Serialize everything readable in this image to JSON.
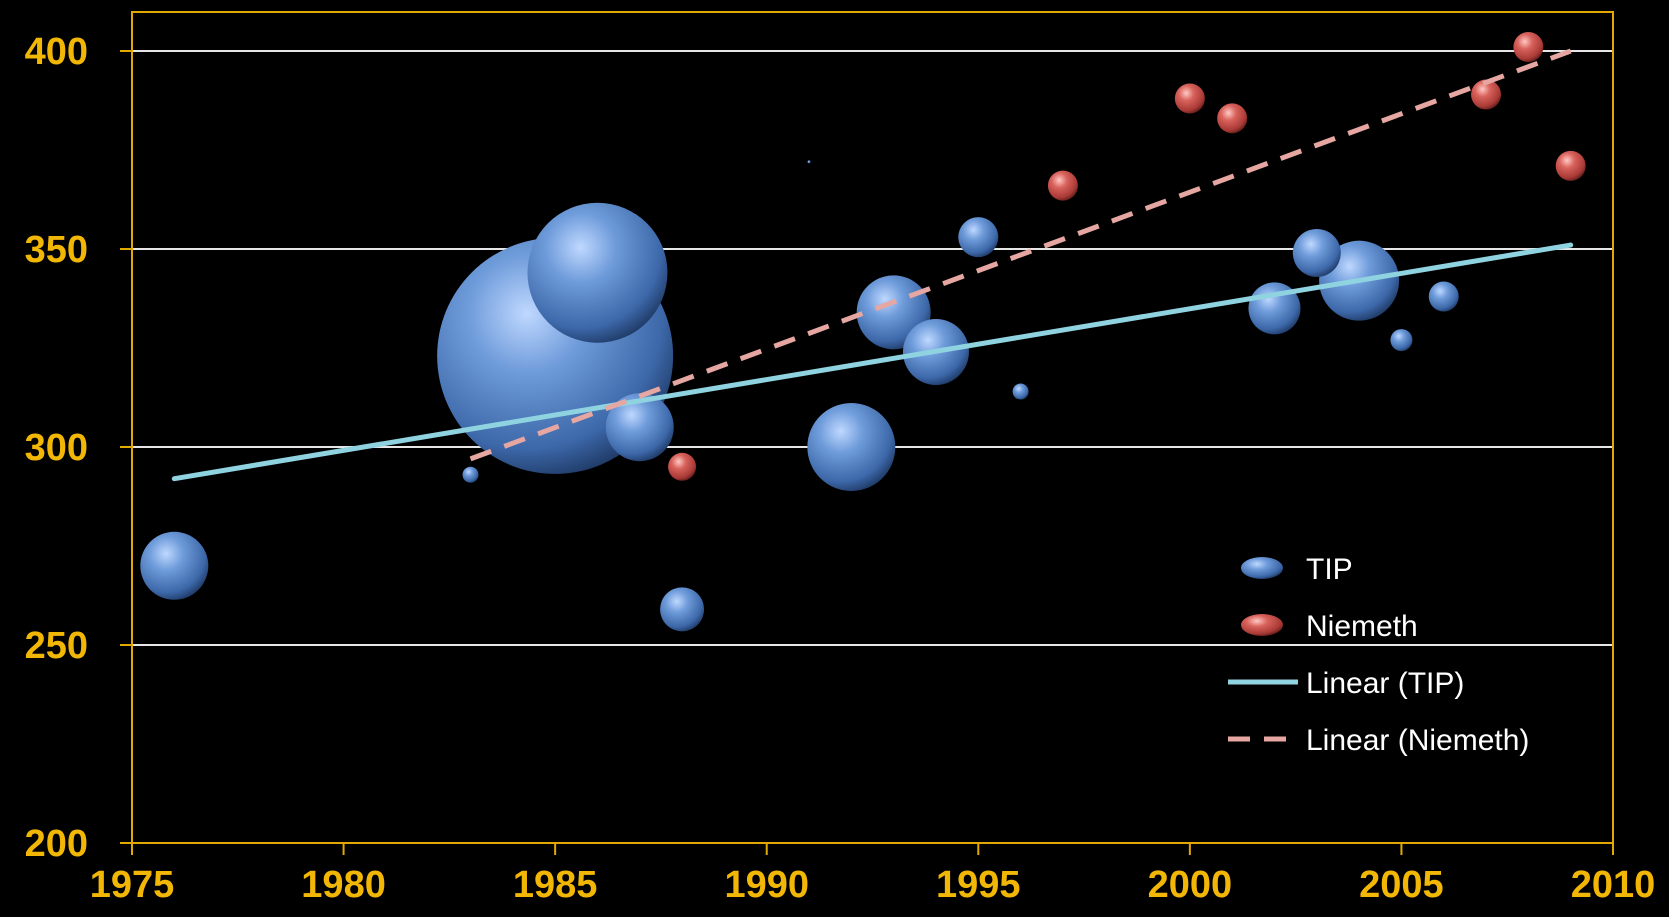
{
  "chart_data": {
    "type": "bubble",
    "title": "",
    "xlabel": "",
    "ylabel": "",
    "xlim": [
      1975,
      2010
    ],
    "ylim": [
      200,
      420
    ],
    "x_ticks": [
      "1975",
      "1980",
      "1985",
      "1990",
      "1995",
      "2000",
      "2005",
      "2010"
    ],
    "y_ticks": [
      "200",
      "250",
      "300",
      "350",
      "400"
    ],
    "grid": "horizontal",
    "legend_position": "bottom-right",
    "series": [
      {
        "name": "TIP",
        "color": "#4A7BC4",
        "points": [
          {
            "x": 1976,
            "y": 270,
            "size": 34
          },
          {
            "x": 1983,
            "y": 293,
            "size": 8
          },
          {
            "x": 1985,
            "y": 323,
            "size": 118
          },
          {
            "x": 1986,
            "y": 344,
            "size": 70
          },
          {
            "x": 1987,
            "y": 305,
            "size": 34
          },
          {
            "x": 1988,
            "y": 259,
            "size": 22
          },
          {
            "x": 1991,
            "y": 372,
            "size": 1.5
          },
          {
            "x": 1992,
            "y": 300,
            "size": 44
          },
          {
            "x": 1993,
            "y": 334,
            "size": 37
          },
          {
            "x": 1994,
            "y": 324,
            "size": 33
          },
          {
            "x": 1995,
            "y": 353,
            "size": 20
          },
          {
            "x": 1996,
            "y": 314,
            "size": 8
          },
          {
            "x": 2002,
            "y": 335,
            "size": 26
          },
          {
            "x": 2003,
            "y": 349,
            "size": 24
          },
          {
            "x": 2004,
            "y": 342,
            "size": 40
          },
          {
            "x": 2005,
            "y": 327,
            "size": 11
          },
          {
            "x": 2006,
            "y": 338,
            "size": 15
          }
        ]
      },
      {
        "name": "Niemeth",
        "color": "#C0504D",
        "points": [
          {
            "x": 1988,
            "y": 295,
            "size": 14
          },
          {
            "x": 1997,
            "y": 366,
            "size": 15
          },
          {
            "x": 2000,
            "y": 388,
            "size": 15
          },
          {
            "x": 2001,
            "y": 383,
            "size": 15
          },
          {
            "x": 2007,
            "y": 389,
            "size": 15
          },
          {
            "x": 2008,
            "y": 401,
            "size": 15
          },
          {
            "x": 2009,
            "y": 371,
            "size": 15
          }
        ]
      }
    ],
    "trendlines": [
      {
        "name": "Linear (TIP)",
        "style": "solid",
        "color": "#8FD3E0",
        "x": [
          1976,
          2009
        ],
        "y": [
          292,
          351
        ]
      },
      {
        "name": "Linear (Niemeth)",
        "style": "dashed",
        "color": "#E6A6A1",
        "x": [
          1983,
          2009
        ],
        "y": [
          297,
          400
        ]
      }
    ]
  }
}
